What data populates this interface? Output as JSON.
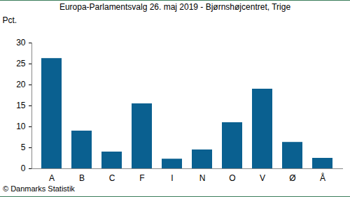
{
  "chart_data": {
    "type": "bar",
    "title": "Europa-Parlamentsvalg 26. maj 2019 - Bjørnshøjcentret, Trige",
    "y_label": "Pct.",
    "source": "© Danmarks Statistik",
    "categories": [
      "A",
      "B",
      "C",
      "F",
      "I",
      "N",
      "O",
      "V",
      "Ø",
      "Å"
    ],
    "values": [
      26.3,
      9.0,
      4.0,
      15.5,
      2.3,
      4.5,
      11.0,
      19.0,
      6.3,
      2.5
    ],
    "color": "#0a6090",
    "ylim": [
      0,
      30
    ],
    "yticks": [
      0,
      5,
      10,
      15,
      20,
      25,
      30
    ],
    "grid": false
  }
}
